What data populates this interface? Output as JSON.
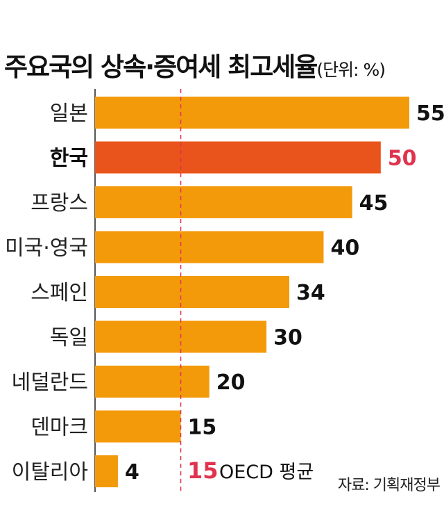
{
  "title": "주요국의 상속·증여세 최고세율",
  "unit": "(단위: %)",
  "source": "자료: 기획재정부",
  "colors": {
    "bar": "#f39a0b",
    "highlight_bar": "#e8541c",
    "highlight_text": "#e0334f",
    "reference_line": "#e0334f",
    "axis": "#555555"
  },
  "chart_data": {
    "type": "bar",
    "orientation": "horizontal",
    "categories": [
      "일본",
      "한국",
      "프랑스",
      "미국·영국",
      "스페인",
      "독일",
      "네덜란드",
      "덴마크",
      "이탈리아"
    ],
    "values": [
      55,
      50,
      45,
      40,
      34,
      30,
      20,
      15,
      4
    ],
    "highlight": "한국",
    "reference_line": {
      "value": 15,
      "value_label": "15",
      "label": "OECD 평균"
    },
    "xlim": [
      0,
      55
    ]
  }
}
